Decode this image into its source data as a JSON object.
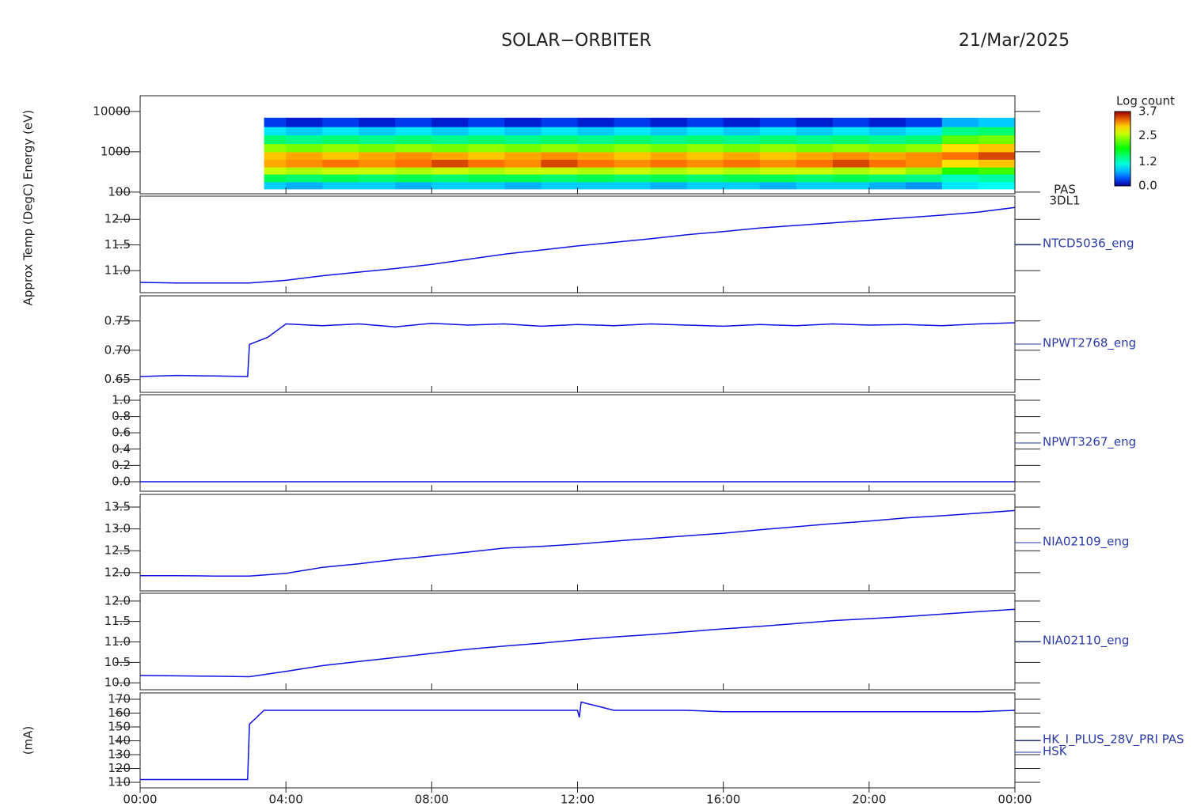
{
  "header": {
    "title": "SOLAR−ORBITER",
    "date": "21/Mar/2025"
  },
  "chart_data": [
    {
      "type": "heatmap",
      "ylabel": "Energy (eV)",
      "label": "PAS",
      "sublabel": "3DL1",
      "log_y": true,
      "colormap": "rainbow",
      "ylim": [
        91,
        24600
      ],
      "yticks": [
        100,
        1000,
        10000
      ],
      "xlim": [
        0,
        24
      ],
      "x": [
        3.4,
        4,
        5,
        6,
        7,
        8,
        9,
        10,
        11,
        12,
        13,
        14,
        15,
        16,
        17,
        18,
        19,
        20,
        21,
        22,
        23,
        24
      ],
      "y": [
        120,
        180,
        280,
        420,
        650,
        1000,
        1600,
        2600,
        4200,
        7000
      ],
      "values": [
        [
          0.8,
          0.7,
          0.8,
          0.8,
          0.7,
          0.8,
          0.8,
          0.7,
          0.8,
          0.8,
          0.8,
          0.7,
          0.8,
          0.8,
          0.7,
          0.8,
          0.8,
          0.7,
          0.6,
          0.9,
          1.0
        ],
        [
          1.6,
          1.5,
          1.6,
          1.5,
          1.6,
          1.5,
          1.6,
          1.6,
          1.5,
          1.6,
          1.5,
          1.6,
          1.5,
          1.6,
          1.6,
          1.5,
          1.6,
          1.5,
          1.4,
          1.2,
          1.3
        ],
        [
          2.6,
          2.5,
          2.6,
          2.6,
          2.5,
          2.6,
          2.5,
          2.6,
          2.6,
          2.5,
          2.6,
          2.5,
          2.6,
          2.5,
          2.6,
          2.6,
          2.5,
          2.6,
          2.4,
          2.0,
          2.1
        ],
        [
          3.1,
          3.2,
          3.3,
          3.2,
          3.3,
          3.4,
          3.3,
          3.2,
          3.4,
          3.3,
          3.2,
          3.3,
          3.2,
          3.3,
          3.2,
          3.3,
          3.4,
          3.3,
          3.2,
          2.9,
          3.0
        ],
        [
          3.0,
          3.1,
          3.0,
          3.1,
          3.2,
          3.1,
          3.0,
          3.1,
          3.2,
          3.1,
          3.0,
          3.1,
          3.0,
          3.1,
          3.0,
          3.1,
          3.2,
          3.1,
          3.2,
          3.3,
          3.4
        ],
        [
          2.4,
          2.3,
          2.4,
          2.3,
          2.4,
          2.3,
          2.4,
          2.3,
          2.4,
          2.3,
          2.4,
          2.3,
          2.4,
          2.3,
          2.4,
          2.3,
          2.4,
          2.3,
          2.4,
          2.9,
          3.0
        ],
        [
          1.5,
          1.4,
          1.5,
          1.4,
          1.5,
          1.4,
          1.5,
          1.4,
          1.5,
          1.4,
          1.5,
          1.4,
          1.5,
          1.4,
          1.5,
          1.4,
          1.5,
          1.4,
          1.5,
          2.2,
          2.3
        ],
        [
          0.9,
          0.8,
          0.9,
          0.8,
          0.9,
          0.8,
          0.9,
          0.8,
          0.9,
          0.8,
          0.9,
          0.8,
          0.9,
          0.8,
          0.9,
          0.8,
          0.9,
          0.8,
          0.9,
          1.4,
          1.5
        ],
        [
          0.3,
          0.2,
          0.3,
          0.2,
          0.3,
          0.2,
          0.3,
          0.2,
          0.3,
          0.2,
          0.3,
          0.2,
          0.3,
          0.2,
          0.3,
          0.2,
          0.3,
          0.2,
          0.3,
          0.7,
          0.8
        ]
      ],
      "colorbar": {
        "label": "Log count",
        "lim": [
          0,
          3.7
        ],
        "ticks": [
          {
            "value": 0,
            "label": "0.0"
          },
          1.2,
          2.5,
          3.7
        ]
      }
    },
    {
      "type": "line",
      "ylabel": "Approx Temp (DegC)",
      "label": "NTCD5036_eng",
      "color": "#1010e0",
      "xlim": [
        0,
        24
      ],
      "ylim": [
        10.57,
        12.45
      ],
      "yticks": [
        {
          "value": 11,
          "label": "11.0"
        },
        11.5,
        {
          "value": 12,
          "label": "12.0"
        }
      ],
      "x": [
        0,
        1,
        2,
        3,
        4,
        5,
        6,
        7,
        8,
        9,
        10,
        11,
        12,
        13,
        14,
        15,
        16,
        17,
        18,
        19,
        20,
        21,
        22,
        23,
        24
      ],
      "values": [
        10.77,
        10.76,
        10.76,
        10.76,
        10.81,
        10.9,
        10.97,
        11.04,
        11.12,
        11.22,
        11.32,
        11.4,
        11.48,
        11.55,
        11.62,
        11.7,
        11.76,
        11.83,
        11.88,
        11.93,
        11.98,
        12.03,
        12.08,
        12.14,
        12.23
      ]
    },
    {
      "type": "line",
      "label": "NPWT2768_eng",
      "color": "#1010e0",
      "xlim": [
        0,
        24
      ],
      "ylim": [
        0.628,
        0.793
      ],
      "yticks": [
        0.65,
        {
          "value": 0.7,
          "label": "0.70"
        },
        0.75
      ],
      "x": [
        0,
        1,
        2,
        2.95,
        3,
        3.5,
        4,
        5,
        6,
        7,
        8,
        9,
        10,
        11,
        12,
        13,
        14,
        15,
        16,
        17,
        18,
        19,
        20,
        21,
        22,
        23,
        24
      ],
      "values": [
        0.655,
        0.657,
        0.656,
        0.655,
        0.71,
        0.722,
        0.745,
        0.742,
        0.745,
        0.74,
        0.746,
        0.743,
        0.745,
        0.741,
        0.744,
        0.742,
        0.745,
        0.743,
        0.741,
        0.744,
        0.742,
        0.745,
        0.743,
        0.744,
        0.742,
        0.745,
        0.747
      ]
    },
    {
      "type": "line",
      "label": "NPWT3267_eng",
      "color": "#1010e0",
      "xlim": [
        0,
        24
      ],
      "ylim": [
        -0.117,
        1.068
      ],
      "yticks": [
        {
          "value": 0,
          "label": "0.0"
        },
        0.2,
        0.4,
        0.6,
        0.8,
        {
          "value": 1,
          "label": "1.0"
        }
      ],
      "x": [
        0,
        1,
        2,
        3,
        4,
        5,
        6,
        7,
        8,
        9,
        10,
        11,
        12,
        13,
        14,
        15,
        16,
        17,
        18,
        19,
        20,
        21,
        22,
        23,
        24
      ],
      "values": [
        0,
        0,
        0,
        0,
        0,
        0,
        0,
        0,
        0,
        0,
        0,
        0,
        0,
        0,
        0,
        0,
        0,
        0,
        0,
        0,
        0,
        0,
        0,
        0,
        0
      ]
    },
    {
      "type": "line",
      "label": "NIA02109_eng",
      "color": "#1010e0",
      "xlim": [
        0,
        24
      ],
      "ylim": [
        11.58,
        13.79
      ],
      "yticks": [
        {
          "value": 12,
          "label": "12.0"
        },
        12.5,
        {
          "value": 13,
          "label": "13.0"
        },
        13.5
      ],
      "x": [
        0,
        1,
        2,
        3,
        4,
        5,
        6,
        7,
        8,
        9,
        10,
        11,
        12,
        13,
        14,
        15,
        16,
        17,
        18,
        19,
        20,
        21,
        22,
        23,
        24
      ],
      "values": [
        11.93,
        11.93,
        11.92,
        11.92,
        11.98,
        12.12,
        12.2,
        12.3,
        12.38,
        12.47,
        12.56,
        12.6,
        12.65,
        12.72,
        12.78,
        12.84,
        12.9,
        12.98,
        13.05,
        13.12,
        13.18,
        13.25,
        13.3,
        13.36,
        13.42
      ]
    },
    {
      "type": "line",
      "label": "NIA02110_eng",
      "color": "#1010e0",
      "xlim": [
        0,
        24
      ],
      "ylim": [
        9.83,
        12.19
      ],
      "yticks": [
        {
          "value": 10,
          "label": "10.0"
        },
        10.5,
        {
          "value": 11,
          "label": "11.0"
        },
        11.5,
        {
          "value": 12,
          "label": "12.0"
        }
      ],
      "x": [
        0,
        1,
        2,
        3,
        4,
        5,
        6,
        7,
        8,
        9,
        10,
        11,
        12,
        13,
        14,
        15,
        16,
        17,
        18,
        19,
        20,
        21,
        22,
        23,
        24
      ],
      "values": [
        10.18,
        10.17,
        10.16,
        10.15,
        10.28,
        10.42,
        10.52,
        10.62,
        10.72,
        10.82,
        10.9,
        10.97,
        11.05,
        11.12,
        11.18,
        11.25,
        11.32,
        11.38,
        11.45,
        11.52,
        11.57,
        11.62,
        11.68,
        11.74,
        11.8
      ]
    },
    {
      "type": "line",
      "ylabel": "(mA)",
      "label": "HK_I_PLUS_28V_PRI PAS",
      "sublabel": "HSK",
      "color": "#1010e0",
      "xlim": [
        0,
        24
      ],
      "ylim": [
        106,
        174.6
      ],
      "yticks": [
        110,
        120,
        130,
        140,
        150,
        160,
        170
      ],
      "xticks": [
        {
          "value": 0,
          "label": "00:00"
        },
        {
          "value": 4,
          "label": "04:00"
        },
        {
          "value": 8,
          "label": "08:00"
        },
        {
          "value": 12,
          "label": "12:00"
        },
        {
          "value": 16,
          "label": "16:00"
        },
        {
          "value": 20,
          "label": "20:00"
        },
        {
          "value": 24,
          "label": "00:00"
        }
      ],
      "x": [
        0,
        1,
        2,
        2.95,
        3,
        3.2,
        3.4,
        4,
        5,
        6,
        7,
        8,
        9,
        10,
        11,
        12,
        12.05,
        12.1,
        13,
        14,
        15,
        16,
        17,
        18,
        19,
        20,
        21,
        22,
        23,
        24
      ],
      "values": [
        112,
        112,
        112,
        112,
        152,
        157,
        162,
        162,
        162,
        162,
        162,
        162,
        162,
        162,
        162,
        162,
        157,
        168,
        162,
        162,
        162,
        161,
        161,
        161,
        161,
        161,
        161,
        161,
        161,
        162
      ]
    }
  ]
}
